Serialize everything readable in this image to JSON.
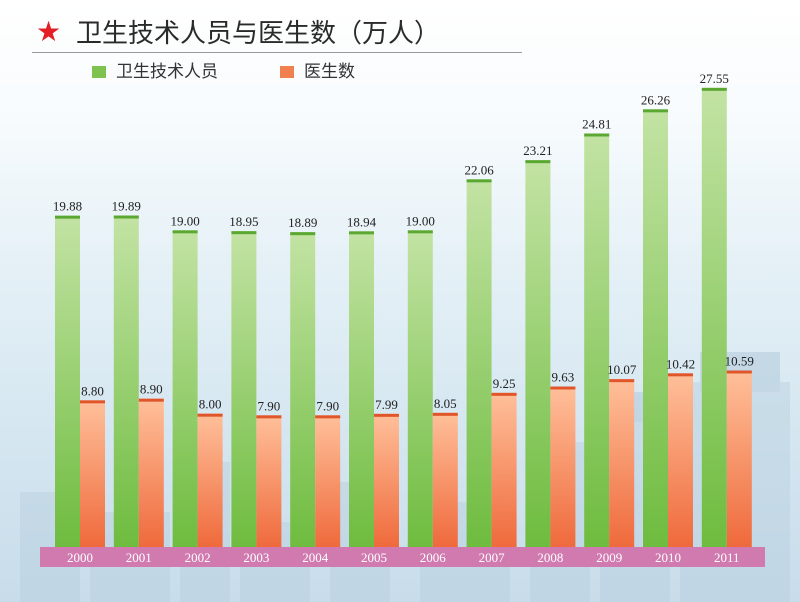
{
  "header": {
    "star_icon": "★",
    "title": "卫生技术人员与医生数（万人）"
  },
  "legend": [
    {
      "label": "卫生技术人员",
      "color": "#7ec24f"
    },
    {
      "label": "医生数",
      "color": "#f08050"
    }
  ],
  "colors": {
    "green_top": "#c3e3a4",
    "green_bottom": "#6ebc3f",
    "green_cap": "#5aa832",
    "orange_top": "#ffc09a",
    "orange_bottom": "#ef6a3c",
    "orange_cap": "#e0552a",
    "axis_band": "#d07ab0"
  },
  "chart_data": {
    "type": "bar",
    "title": "卫生技术人员与医生数（万人）",
    "categories": [
      "2000",
      "2001",
      "2002",
      "2003",
      "2004",
      "2005",
      "2006",
      "2007",
      "2008",
      "2009",
      "2010",
      "2011"
    ],
    "series": [
      {
        "name": "卫生技术人员",
        "values": [
          19.88,
          19.89,
          19.0,
          18.95,
          18.89,
          18.94,
          19.0,
          22.06,
          23.21,
          24.81,
          26.26,
          27.55
        ],
        "labels": [
          "19.88",
          "19.89",
          "19.00",
          "18.95",
          "18.89",
          "18.94",
          "19.00",
          "22.06",
          "23.21",
          "24.81",
          "26.26",
          "27.55"
        ]
      },
      {
        "name": "医生数",
        "values": [
          8.8,
          8.9,
          8.0,
          7.9,
          7.9,
          7.99,
          8.05,
          9.25,
          9.63,
          10.07,
          10.42,
          10.59
        ],
        "labels": [
          "8.80",
          "8.90",
          "8.00",
          "7.90",
          "7.90",
          "7.99",
          "8.05",
          "9.25",
          "9.63",
          "10.07",
          "10.42",
          "10.59"
        ]
      }
    ],
    "ylim": [
      0,
      30
    ],
    "grid": false,
    "legend_position": "top-left",
    "axis_visible": false
  }
}
